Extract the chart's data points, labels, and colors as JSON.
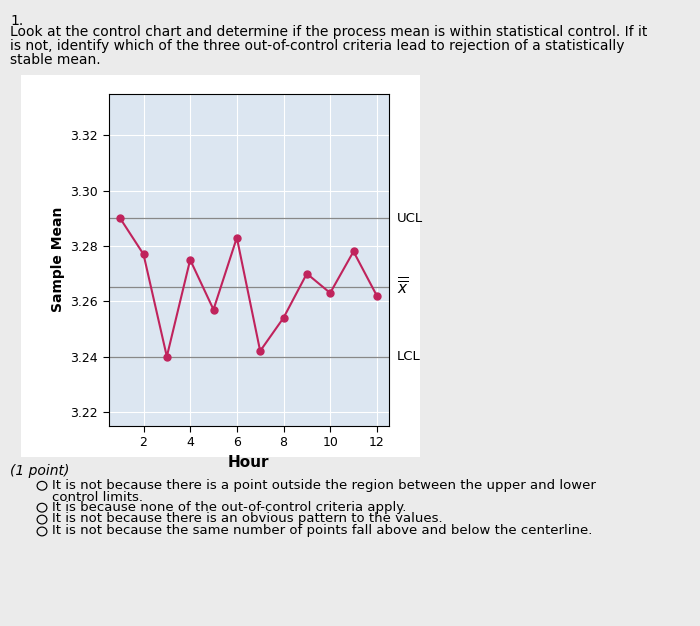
{
  "hours": [
    1,
    2,
    3,
    4,
    5,
    6,
    7,
    8,
    9,
    10,
    11,
    12
  ],
  "values": [
    3.29,
    3.277,
    3.24,
    3.275,
    3.257,
    3.283,
    3.242,
    3.254,
    3.27,
    3.263,
    3.278,
    3.262
  ],
  "UCL": 3.29,
  "LCL": 3.24,
  "centerline": 3.265,
  "ylim_low": 3.215,
  "ylim_high": 3.335,
  "yticks": [
    3.22,
    3.24,
    3.26,
    3.28,
    3.3,
    3.32
  ],
  "xticks": [
    2,
    4,
    6,
    8,
    10,
    12
  ],
  "xlabel": "Hour",
  "ylabel": "Sample Mean",
  "line_color": "#c0235c",
  "marker_color": "#c0235c",
  "bg_color": "#dce6f1",
  "outer_bg": "#ebebeb",
  "grid_color": "#ffffff",
  "ucl_label": "UCL",
  "lcl_label": "LCL",
  "question_number": "1.",
  "question_text_line1": "Look at the control chart and determine if the process mean is within statistical control. If it",
  "question_text_line2": "is not, identify which of the three out-of-control criteria lead to rejection of a statistically",
  "question_text_line3": "stable mean.",
  "point_label": "(1 point)",
  "option1a": "It is not because there is a point outside the region between the upper and lower",
  "option1b": "control limits.",
  "option2": "It is because none of the out-of-control criteria apply.",
  "option3": "It is not because there is an obvious pattern to the values.",
  "option4": "It is not because the same number of points fall above and below the centerline."
}
